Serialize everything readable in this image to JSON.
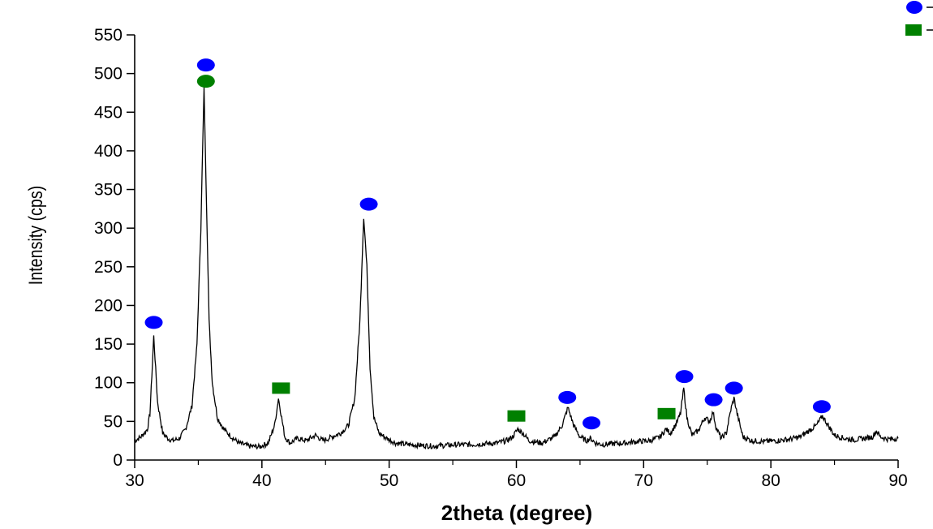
{
  "chart_data": {
    "type": "line",
    "title": "",
    "xlabel": "2theta (degree)",
    "ylabel": "Intensity (cps)",
    "xlim": [
      30,
      90
    ],
    "ylim": [
      0,
      550
    ],
    "xticks": [
      30,
      40,
      50,
      60,
      70,
      80,
      90
    ],
    "yticks": [
      0,
      50,
      100,
      150,
      200,
      250,
      300,
      350,
      400,
      450,
      500,
      550
    ],
    "grid": false,
    "legend_position": "top-right",
    "series": [
      {
        "color": "#000000",
        "x": [
          30.0,
          30.5,
          31.0,
          31.2,
          31.5,
          31.8,
          32.2,
          32.6,
          33.0,
          33.5,
          34.0,
          34.5,
          34.9,
          35.2,
          35.45,
          35.65,
          35.85,
          36.1,
          36.5,
          37.0,
          37.6,
          38.2,
          39.0,
          39.8,
          40.5,
          41.0,
          41.3,
          41.55,
          41.8,
          42.2,
          42.8,
          43.5,
          44.2,
          44.8,
          45.5,
          46.2,
          46.8,
          47.3,
          47.7,
          48.0,
          48.25,
          48.5,
          48.8,
          49.2,
          49.8,
          50.5,
          51.5,
          52.5,
          53.5,
          54.5,
          55.5,
          56.5,
          57.5,
          58.5,
          59.2,
          59.7,
          60.1,
          60.5,
          61.0,
          62.0,
          63.0,
          63.6,
          64.05,
          64.5,
          65.0,
          65.5,
          65.85,
          66.2,
          66.8,
          67.5,
          68.5,
          69.5,
          70.5,
          71.3,
          71.75,
          72.1,
          72.5,
          72.9,
          73.15,
          73.4,
          73.8,
          74.3,
          74.8,
          75.2,
          75.45,
          75.7,
          76.1,
          76.5,
          76.85,
          77.1,
          77.35,
          77.8,
          78.5,
          79.5,
          80.5,
          81.5,
          82.3,
          83.0,
          83.6,
          84.05,
          84.5,
          85.0,
          85.8,
          86.5,
          87.3,
          88.0,
          88.3,
          88.6,
          89.2,
          90.0
        ],
        "y": [
          25,
          30,
          40,
          60,
          160,
          75,
          35,
          28,
          25,
          28,
          40,
          70,
          150,
          300,
          480,
          330,
          180,
          100,
          55,
          40,
          30,
          22,
          18,
          17,
          22,
          45,
          80,
          55,
          30,
          22,
          28,
          25,
          32,
          25,
          30,
          35,
          45,
          80,
          180,
          315,
          250,
          120,
          55,
          35,
          28,
          22,
          20,
          19,
          18,
          19,
          20,
          20,
          21,
          22,
          25,
          30,
          40,
          35,
          25,
          22,
          30,
          45,
          68,
          45,
          30,
          25,
          28,
          22,
          20,
          21,
          22,
          24,
          25,
          30,
          40,
          35,
          45,
          60,
          93,
          55,
          32,
          38,
          55,
          50,
          62,
          42,
          28,
          35,
          65,
          80,
          60,
          30,
          25,
          24,
          25,
          27,
          30,
          38,
          45,
          57,
          45,
          32,
          28,
          26,
          28,
          30,
          38,
          30,
          27,
          28
        ]
      }
    ],
    "markers": [
      {
        "phase": "circle",
        "color": "#0000ff",
        "x": 31.5,
        "y": 178
      },
      {
        "phase": "circle",
        "color": "#0000ff",
        "x": 35.6,
        "y": 511
      },
      {
        "phase": "circle",
        "color": "#008000",
        "x": 35.6,
        "y": 490
      },
      {
        "phase": "square",
        "color": "#008000",
        "x": 41.5,
        "y": 93
      },
      {
        "phase": "circle",
        "color": "#0000ff",
        "x": 48.4,
        "y": 331
      },
      {
        "phase": "square",
        "color": "#008000",
        "x": 60.0,
        "y": 57
      },
      {
        "phase": "circle",
        "color": "#0000ff",
        "x": 64.0,
        "y": 81
      },
      {
        "phase": "circle",
        "color": "#0000ff",
        "x": 65.9,
        "y": 48
      },
      {
        "phase": "square",
        "color": "#008000",
        "x": 71.8,
        "y": 60
      },
      {
        "phase": "circle",
        "color": "#0000ff",
        "x": 73.2,
        "y": 108
      },
      {
        "phase": "circle",
        "color": "#0000ff",
        "x": 75.5,
        "y": 78
      },
      {
        "phase": "circle",
        "color": "#0000ff",
        "x": 77.1,
        "y": 93
      },
      {
        "phase": "circle",
        "color": "#0000ff",
        "x": 84.0,
        "y": 69
      }
    ],
    "legend": [
      {
        "marker": "circle",
        "color": "#0000ff"
      },
      {
        "marker": "square",
        "color": "#008000"
      }
    ]
  }
}
